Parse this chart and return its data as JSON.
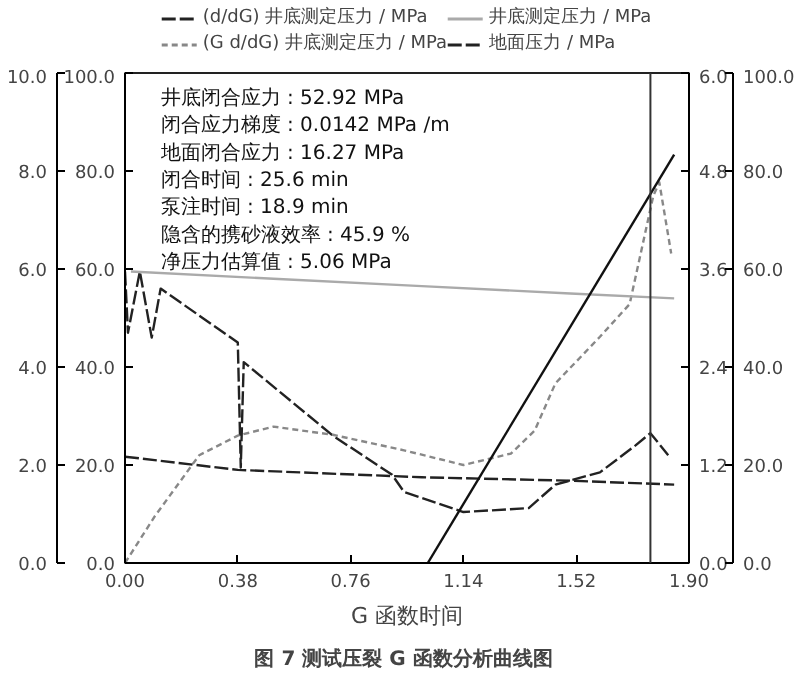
{
  "chart_data": {
    "type": "line",
    "xlabel": "G 函数时间",
    "xlim": [
      0,
      1.9
    ],
    "xticks": [
      {
        "value": 0,
        "label": "0.00"
      },
      {
        "value": 0.38,
        "label": "0.38"
      },
      {
        "value": 0.76,
        "label": "0.76"
      },
      {
        "value": 1.14,
        "label": "1.14"
      },
      {
        "value": 1.52,
        "label": "1.52"
      },
      {
        "value": 1.9,
        "label": "1.90"
      }
    ],
    "ylim": [
      0,
      100
    ],
    "yticks": [
      {
        "value": 0,
        "label": "0.0"
      },
      {
        "value": 20,
        "label": "20.0"
      },
      {
        "value": 40,
        "label": "40.0"
      },
      {
        "value": 60,
        "label": "60.0"
      },
      {
        "value": 80,
        "label": "80.0"
      },
      {
        "value": 100,
        "label": "100.0"
      }
    ],
    "y3lim": [
      0,
      10
    ],
    "y3ticks": [
      {
        "value": 0,
        "label": "0.0"
      },
      {
        "value": 2,
        "label": "2.0"
      },
      {
        "value": 4,
        "label": "4.0"
      },
      {
        "value": 6,
        "label": "6.0"
      },
      {
        "value": 8,
        "label": "8.0"
      },
      {
        "value": 10,
        "label": "10.0"
      }
    ],
    "y2lim": [
      0,
      6
    ],
    "y2ticks": [
      {
        "value": 0,
        "label": "0.0"
      },
      1.2,
      2.4,
      3.6,
      4.8,
      {
        "value": 6,
        "label": "6.0"
      }
    ],
    "grid": false,
    "legend": "top",
    "marker": "none",
    "series": [
      {
        "name": "(d/dG) 井底测定压力 / MPa",
        "color": "#222222",
        "axis": "y3",
        "line_style": "dashed",
        "x": [
          0,
          0.01,
          0.05,
          0.09,
          0.12,
          0.38,
          0.39,
          0.4,
          0.7,
          0.9,
          0.94,
          1.14,
          1.36,
          1.45,
          1.6,
          1.72,
          1.77,
          1.83
        ],
        "values": [
          5.95,
          4.7,
          5.95,
          4.6,
          5.6,
          4.5,
          1.95,
          4.1,
          2.6,
          1.8,
          1.45,
          1.04,
          1.12,
          1.6,
          1.85,
          2.4,
          2.65,
          2.2
        ]
      },
      {
        "name": "(G d/dG) 井底测定压力 / MPa",
        "color": "#888888",
        "axis": "y2",
        "line_style": "dotted",
        "x": [
          0,
          0.1,
          0.25,
          0.38,
          0.5,
          0.7,
          0.94,
          1.14,
          1.3,
          1.38,
          1.45,
          1.6,
          1.7,
          1.78,
          1.8,
          1.84
        ],
        "values": [
          0,
          0.57,
          1.32,
          1.56,
          1.67,
          1.57,
          1.38,
          1.2,
          1.34,
          1.62,
          2.2,
          2.77,
          3.17,
          4.5,
          4.66,
          3.79
        ]
      },
      {
        "name": "井底测定压力 / MPa",
        "color": "#aaaaaa",
        "axis": "y",
        "line_style": "solid",
        "x": [
          0.02,
          0.5,
          1.0,
          1.5,
          1.85
        ],
        "values": [
          59.5,
          58,
          56.5,
          55,
          54
        ]
      },
      {
        "name": "地面压力 / MPa",
        "color": "#222222",
        "axis": "y",
        "line_style": "dashed",
        "x": [
          0,
          0.38,
          1.0,
          1.5,
          1.85
        ],
        "values": [
          21.7,
          19,
          17.5,
          16.8,
          16
        ]
      },
      {
        "type": "line",
        "color": "#111111",
        "axis": "y2",
        "line_style": "solid",
        "x": [
          1.02,
          1.85
        ],
        "values": [
          0,
          5.0
        ]
      }
    ],
    "ref_lines": [
      {
        "axis": "x",
        "value": 1.77,
        "color": "#333333"
      }
    ],
    "annotations": [
      "井底闭合应力 : 52.92 MPa",
      "闭合应力梯度 : 0.0142 MPa /m",
      "地面闭合应力 : 16.27 MPa",
      "闭合时间 : 25.6 min",
      "泵注时间 : 18.9 min",
      "隐含的携砂液效率 : 45.9 %",
      "净压力估算值 : 5.06 MPa",
      "图 7  测试压裂 G 函数分析曲线图"
    ]
  }
}
